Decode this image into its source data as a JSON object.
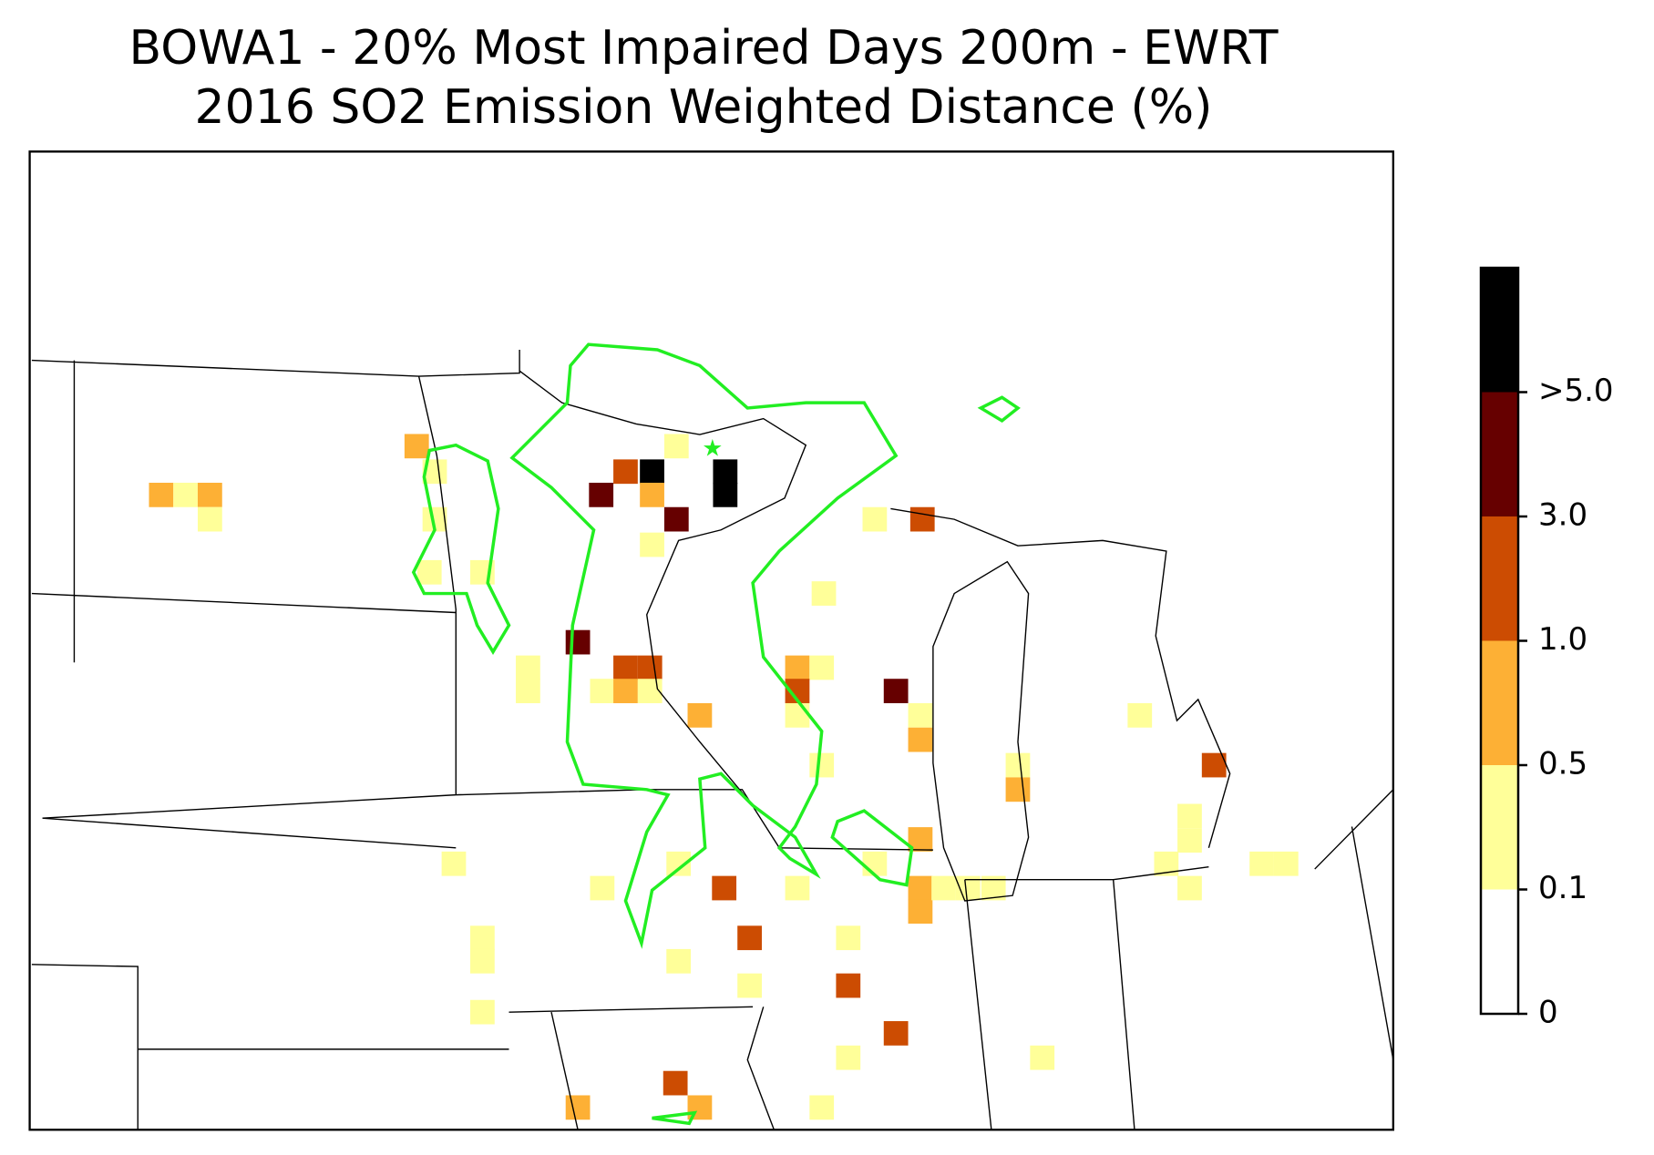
{
  "chart_data": {
    "type": "grid-map",
    "title": "BOWA1 - 20% Most Impaired Days 200m - EWRT\n2016 SO2 Emission Weighted Distance (%)",
    "colorbar": {
      "ticks": [
        0,
        {
          "value": 0.1,
          "label": "0.1"
        },
        {
          "value": 0.5,
          "label": "0.5"
        },
        {
          "value": 1,
          "label": "1.0"
        },
        {
          "value": 3,
          "label": "3.0"
        },
        {
          "value": 5,
          "label": ">5.0"
        }
      ],
      "colors": [
        "#ffffff",
        "#ffff99",
        "#fdb035",
        "#cc4c02",
        "#660000",
        "#000000"
      ]
    }
  }
}
